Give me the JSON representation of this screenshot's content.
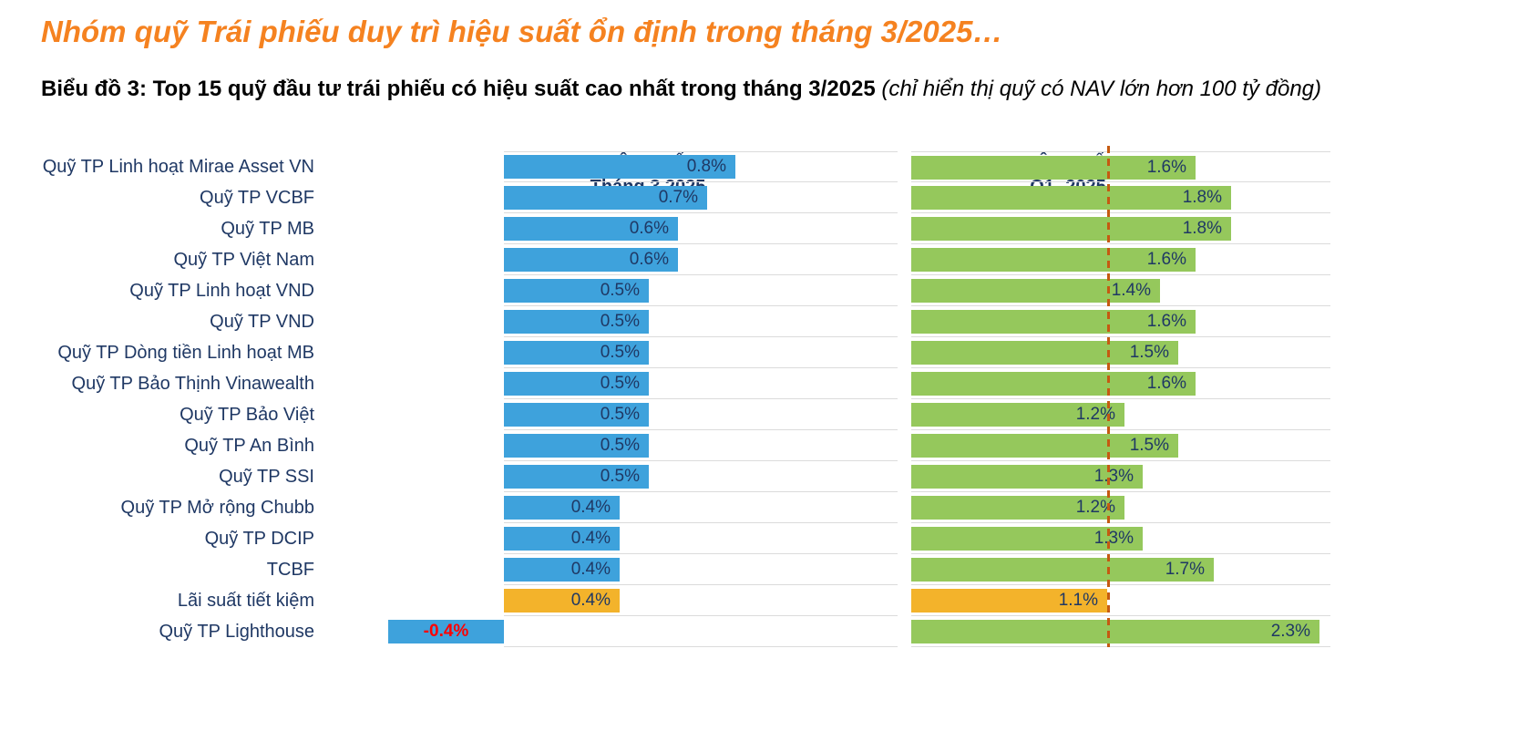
{
  "title": "Nhóm quỹ Trái phiếu duy trì hiệu suất ổn định trong tháng 3/2025…",
  "subtitle_bold": "Biểu đồ 3: Top 15 quỹ đầu tư trái phiếu có hiệu suất cao nhất trong tháng 3/2025",
  "subtitle_note": " (chỉ hiển thị quỹ có NAV lớn hơn 100 tỷ đồng)",
  "columns": {
    "month": {
      "title": "HIỆU SUẤT",
      "subtitle": "Tháng 3.2025"
    },
    "q1": {
      "title": "HIỆU SUẤT",
      "subtitle": "Q1- 2025"
    }
  },
  "colors": {
    "blue": "#3EA2DC",
    "green": "#95C85C",
    "amber": "#F3B32B",
    "navy": "#1F3864",
    "title_orange": "#F58220",
    "negative_red": "#FF0000",
    "benchmark": "#C55A11",
    "grid": "#DBDBDB"
  },
  "chart_data": {
    "type": "bar",
    "orientation": "horizontal",
    "title": "Top 15 quỹ đầu tư trái phiếu có hiệu suất cao nhất trong tháng 3/2025",
    "categories": [
      "Quỹ TP Linh hoạt Mirae Asset VN",
      "Quỹ TP VCBF",
      "Quỹ TP MB",
      "Quỹ TP Việt Nam",
      "Quỹ TP Linh hoạt VND",
      "Quỹ TP VND",
      "Quỹ TP Dòng tiền Linh hoạt MB",
      "Quỹ TP Bảo Thịnh Vinawealth",
      "Quỹ TP Bảo Việt",
      "Quỹ TP An Bình",
      "Quỹ TP SSI",
      "Quỹ TP Mở rộng Chubb",
      "Quỹ TP DCIP",
      "TCBF",
      "Lãi suất tiết kiệm",
      "Quỹ TP Lighthouse"
    ],
    "series": [
      {
        "name": "HIỆU SUẤT Tháng 3.2025",
        "color": "#3EA2DC",
        "values": [
          0.8,
          0.7,
          0.6,
          0.6,
          0.5,
          0.5,
          0.5,
          0.5,
          0.5,
          0.5,
          0.5,
          0.4,
          0.4,
          0.4,
          0.4,
          -0.4
        ],
        "labels": [
          "0.8%",
          "0.7%",
          "0.6%",
          "0.6%",
          "0.5%",
          "0.5%",
          "0.5%",
          "0.5%",
          "0.5%",
          "0.5%",
          "0.5%",
          "0.4%",
          "0.4%",
          "0.4%",
          "0.4%",
          "-0.4%"
        ]
      },
      {
        "name": "HIỆU SUẤT Q1- 2025",
        "color": "#95C85C",
        "values": [
          1.6,
          1.8,
          1.8,
          1.6,
          1.4,
          1.6,
          1.5,
          1.6,
          1.2,
          1.5,
          1.3,
          1.2,
          1.3,
          1.7,
          1.1,
          2.3
        ],
        "labels": [
          "1.6%",
          "1.8%",
          "1.8%",
          "1.6%",
          "1.4%",
          "1.6%",
          "1.5%",
          "1.6%",
          "1.2%",
          "1.5%",
          "1.3%",
          "1.2%",
          "1.3%",
          "1.7%",
          "1.1%",
          "2.3%"
        ]
      }
    ],
    "highlight_category": "Lãi suất tiết kiệm",
    "highlight_color": "#F3B32B",
    "benchmark_line": {
      "value": 1.1,
      "color": "#C55A11",
      "style": "dashed"
    },
    "xlim_month": [
      -0.5,
      1.35
    ],
    "xlim_q1": [
      0,
      2.4
    ],
    "grid": "horizontal-row-separators",
    "legend_position": "column-headers"
  }
}
